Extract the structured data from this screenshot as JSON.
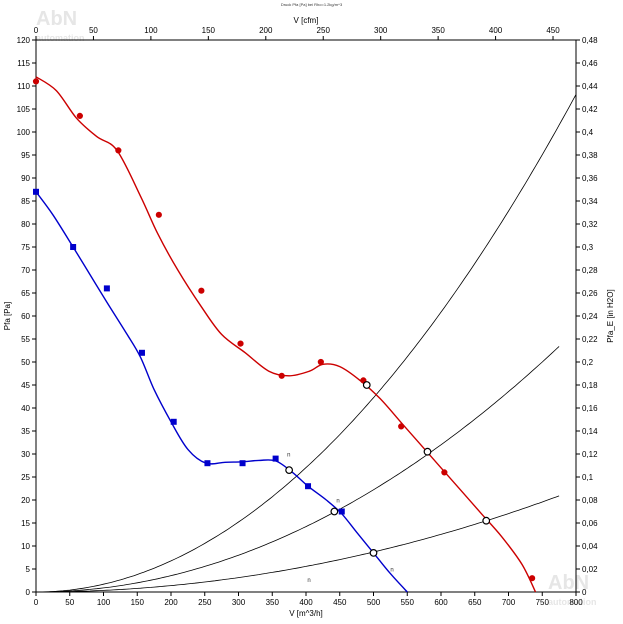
{
  "title": "Druck Pfa [Pa] bei Rho=1.2kg/m^3",
  "watermark": {
    "logo": "AbN",
    "sub": "automation"
  },
  "chart_data": {
    "type": "line",
    "xlabel": "V [m^3/h]",
    "x2label": "V [cfm]",
    "ylabel": "Pfa [Pa]",
    "y2label": "Pfa_E [in H2O]",
    "xlim": [
      0,
      800
    ],
    "ylim": [
      0,
      120
    ],
    "x2lim": [
      0,
      470
    ],
    "y2lim": [
      0,
      0.48
    ],
    "grid": false,
    "x_ticks": [
      "0",
      "50",
      "100",
      "150",
      "200",
      "250",
      "300",
      "350",
      "400",
      "450",
      "500",
      "550",
      "600",
      "650",
      "700",
      "750",
      "800"
    ],
    "y_ticks": [
      "0",
      "5",
      "10",
      "15",
      "20",
      "25",
      "30",
      "35",
      "40",
      "45",
      "50",
      "55",
      "60",
      "65",
      "70",
      "75",
      "80",
      "85",
      "90",
      "95",
      "100",
      "105",
      "110",
      "115",
      "120"
    ],
    "x2_ticks": [
      "0",
      "50",
      "100",
      "150",
      "200",
      "250",
      "300",
      "350",
      "400",
      "450"
    ],
    "y2_ticks": [
      "0",
      "0,02",
      "0,04",
      "0,06",
      "0,08",
      "0,1",
      "0,12",
      "0,14",
      "0,16",
      "0,18",
      "0,2",
      "0,22",
      "0,24",
      "0,26",
      "0,28",
      "0,3",
      "0,32",
      "0,34",
      "0,36",
      "0,38",
      "0,4",
      "0,42",
      "0,44",
      "0,46",
      "0,48"
    ],
    "series": [
      {
        "color": "#cc0000",
        "marker": "circle",
        "points": [
          [
            0,
            112
          ],
          [
            30,
            109
          ],
          [
            60,
            103
          ],
          [
            90,
            99
          ],
          [
            120,
            96
          ],
          [
            155,
            86
          ],
          [
            180,
            78
          ],
          [
            210,
            70
          ],
          [
            245,
            62
          ],
          [
            275,
            56
          ],
          [
            310,
            52
          ],
          [
            345,
            48
          ],
          [
            375,
            47
          ],
          [
            405,
            48
          ],
          [
            425,
            49.5
          ],
          [
            450,
            49
          ],
          [
            480,
            46
          ],
          [
            510,
            42
          ],
          [
            540,
            37
          ],
          [
            570,
            32
          ],
          [
            600,
            27
          ],
          [
            630,
            22
          ],
          [
            660,
            17
          ],
          [
            690,
            12
          ],
          [
            720,
            6
          ],
          [
            740,
            0
          ]
        ],
        "markers": [
          [
            0,
            111
          ],
          [
            65,
            103.5
          ],
          [
            122,
            96
          ],
          [
            182,
            82
          ],
          [
            245,
            65.5
          ],
          [
            303,
            54
          ],
          [
            364,
            47
          ],
          [
            422,
            50
          ],
          [
            485,
            46
          ],
          [
            541,
            36
          ],
          [
            605,
            26
          ],
          [
            668,
            15.5
          ],
          [
            735,
            3
          ]
        ]
      },
      {
        "color": "#0000cc",
        "marker": "square",
        "points": [
          [
            0,
            87
          ],
          [
            25,
            82
          ],
          [
            55,
            75
          ],
          [
            80,
            69
          ],
          [
            105,
            63
          ],
          [
            135,
            56
          ],
          [
            155,
            51
          ],
          [
            175,
            44
          ],
          [
            200,
            37
          ],
          [
            225,
            31
          ],
          [
            252,
            28
          ],
          [
            280,
            28.2
          ],
          [
            305,
            28.3
          ],
          [
            330,
            28.6
          ],
          [
            355,
            28.5
          ],
          [
            380,
            26
          ],
          [
            403,
            23
          ],
          [
            430,
            20
          ],
          [
            453,
            17
          ],
          [
            475,
            13
          ],
          [
            500,
            8.5
          ],
          [
            525,
            4
          ],
          [
            550,
            0
          ]
        ],
        "markers": [
          [
            0,
            87
          ],
          [
            55,
            75
          ],
          [
            105,
            66
          ],
          [
            157,
            52
          ],
          [
            204,
            37
          ],
          [
            254,
            28
          ],
          [
            306,
            28
          ],
          [
            355,
            29
          ],
          [
            403,
            23
          ],
          [
            453,
            17.5
          ]
        ]
      }
    ],
    "system_curves": [
      {
        "k": 0.000169,
        "x_max": 800
      },
      {
        "k": 8.89e-05,
        "x_max": 775
      },
      {
        "k": 3.48e-05,
        "x_max": 775
      }
    ],
    "intersections": [
      [
        375,
        26.5
      ],
      [
        490,
        45
      ],
      [
        442,
        17.5
      ],
      [
        500,
        8.5
      ],
      [
        580,
        30.5
      ],
      [
        667,
        15.5
      ]
    ],
    "curve_labels": [
      "n",
      "n",
      "n",
      "n"
    ]
  }
}
